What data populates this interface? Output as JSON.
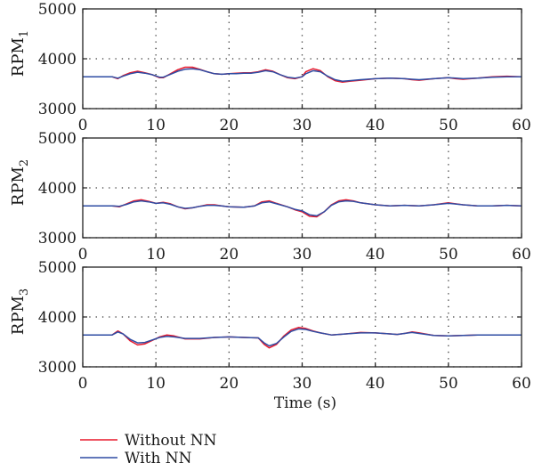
{
  "chart_data": {
    "type": "line",
    "xlabel": "Time (s)",
    "xlim": [
      0,
      60
    ],
    "ylim": [
      3000,
      5000
    ],
    "x_ticks": [
      0,
      10,
      20,
      30,
      40,
      50,
      60
    ],
    "y_ticks": [
      3000,
      4000,
      5000
    ],
    "y_tick_labels": [
      "3000",
      "4000",
      "5000"
    ],
    "grid": "dotted",
    "legend": "bottom-left",
    "colors": {
      "Without NN": "#e8192c",
      "With NN": "#2e4ca3"
    },
    "panels": [
      {
        "ylabel_main": "RPM",
        "ylabel_sub": "1",
        "series": [
          {
            "name": "Without NN",
            "x": [
              0,
              4,
              4.8,
              5.5,
              6.5,
              7.5,
              8.5,
              9.5,
              10.5,
              11,
              12,
              13,
              14,
              15,
              16,
              17,
              18,
              19,
              20,
              21,
              22,
              23,
              24,
              25,
              26,
              27,
              28,
              29,
              30,
              30.5,
              31.5,
              32.5,
              33.5,
              34.5,
              35.5,
              36.5,
              38,
              40,
              42,
              44,
              45,
              46,
              48,
              50,
              51,
              52,
              54,
              56,
              58,
              60
            ],
            "y": [
              3640,
              3640,
              3600,
              3660,
              3720,
              3750,
              3720,
              3680,
              3620,
              3620,
              3700,
              3780,
              3830,
              3830,
              3790,
              3740,
              3700,
              3690,
              3700,
              3710,
              3720,
              3720,
              3740,
              3780,
              3750,
              3680,
              3620,
              3600,
              3640,
              3740,
              3800,
              3760,
              3640,
              3560,
              3530,
              3550,
              3570,
              3600,
              3610,
              3600,
              3580,
              3570,
              3600,
              3620,
              3600,
              3590,
              3610,
              3640,
              3650,
              3640
            ]
          },
          {
            "name": "With NN",
            "x": [
              0,
              4,
              4.8,
              5.5,
              6.5,
              7.5,
              8.5,
              9.5,
              10.5,
              11,
              12,
              13,
              14,
              15,
              16,
              17,
              18,
              19,
              20,
              21,
              22,
              23,
              24,
              25,
              26,
              27,
              28,
              29,
              30,
              30.5,
              31.5,
              32.5,
              33.5,
              34.5,
              35.5,
              36.5,
              38,
              40,
              42,
              44,
              45,
              46,
              48,
              50,
              51,
              52,
              54,
              56,
              58,
              60
            ],
            "y": [
              3640,
              3640,
              3610,
              3650,
              3700,
              3730,
              3710,
              3680,
              3630,
              3630,
              3690,
              3750,
              3790,
              3800,
              3780,
              3740,
              3700,
              3690,
              3700,
              3700,
              3710,
              3710,
              3730,
              3760,
              3740,
              3680,
              3630,
              3610,
              3640,
              3700,
              3760,
              3740,
              3650,
              3580,
              3550,
              3560,
              3580,
              3600,
              3610,
              3600,
              3590,
              3580,
              3600,
              3620,
              3610,
              3600,
              3610,
              3630,
              3640,
              3640
            ]
          }
        ]
      },
      {
        "ylabel_main": "RPM",
        "ylabel_sub": "2",
        "series": [
          {
            "name": "Without NN",
            "x": [
              0,
              4,
              5,
              6,
              7,
              8,
              9,
              10,
              11,
              12,
              13,
              14,
              15,
              16,
              17,
              18,
              19,
              20,
              22,
              23.5,
              24.5,
              25.5,
              26.5,
              28,
              29,
              30,
              31,
              32,
              33,
              34,
              35,
              36,
              37,
              38,
              40,
              42,
              44,
              46,
              48,
              50,
              52,
              54,
              56,
              58,
              60
            ],
            "y": [
              3640,
              3640,
              3620,
              3680,
              3740,
              3760,
              3730,
              3690,
              3710,
              3680,
              3620,
              3580,
              3600,
              3630,
              3660,
              3660,
              3640,
              3620,
              3610,
              3640,
              3720,
              3740,
              3690,
              3620,
              3560,
              3520,
              3430,
              3420,
              3520,
              3660,
              3740,
              3760,
              3740,
              3700,
              3660,
              3640,
              3650,
              3640,
              3660,
              3700,
              3660,
              3640,
              3640,
              3650,
              3640
            ]
          },
          {
            "name": "With NN",
            "x": [
              0,
              4,
              5,
              6,
              7,
              8,
              9,
              10,
              11,
              12,
              13,
              14,
              15,
              16,
              17,
              18,
              19,
              20,
              22,
              23.5,
              24.5,
              25.5,
              26.5,
              28,
              29,
              30,
              31,
              32,
              33,
              34,
              35,
              36,
              37,
              38,
              40,
              42,
              44,
              46,
              48,
              50,
              52,
              54,
              56,
              58,
              60
            ],
            "y": [
              3640,
              3640,
              3630,
              3670,
              3720,
              3740,
              3720,
              3690,
              3700,
              3670,
              3620,
              3590,
              3600,
              3630,
              3650,
              3650,
              3640,
              3620,
              3610,
              3640,
              3700,
              3720,
              3680,
              3620,
              3570,
              3540,
              3460,
              3440,
              3520,
              3650,
              3720,
              3740,
              3730,
              3700,
              3660,
              3640,
              3650,
              3640,
              3660,
              3690,
              3660,
              3640,
              3640,
              3650,
              3640
            ]
          }
        ]
      },
      {
        "ylabel_main": "RPM",
        "ylabel_sub": "3",
        "series": [
          {
            "name": "Without NN",
            "x": [
              0,
              4,
              4.8,
              5.5,
              6.5,
              7.5,
              8.5,
              9.5,
              10.5,
              11.5,
              12.5,
              14,
              16,
              18,
              20,
              22,
              24,
              24.8,
              25.5,
              26.5,
              27.5,
              28.5,
              29.5,
              30.5,
              31.5,
              32.5,
              34,
              36,
              38,
              40,
              42,
              43,
              44,
              45,
              46,
              48,
              50,
              52,
              54,
              56,
              58,
              60
            ],
            "y": [
              3640,
              3640,
              3720,
              3660,
              3520,
              3440,
              3460,
              3530,
              3600,
              3640,
              3620,
              3560,
              3560,
              3590,
              3600,
              3590,
              3580,
              3450,
              3380,
              3450,
              3620,
              3740,
              3790,
              3770,
              3720,
              3680,
              3640,
              3660,
              3690,
              3680,
              3660,
              3650,
              3670,
              3700,
              3680,
              3630,
              3620,
              3630,
              3640,
              3640,
              3640,
              3640
            ]
          },
          {
            "name": "With NN",
            "x": [
              0,
              4,
              4.8,
              5.5,
              6.5,
              7.5,
              8.5,
              9.5,
              10.5,
              11.5,
              12.5,
              14,
              16,
              18,
              20,
              22,
              24,
              24.8,
              25.5,
              26.5,
              27.5,
              28.5,
              29.5,
              30.5,
              31.5,
              32.5,
              34,
              36,
              38,
              40,
              42,
              43,
              44,
              45,
              46,
              48,
              50,
              52,
              54,
              56,
              58,
              60
            ],
            "y": [
              3640,
              3640,
              3700,
              3660,
              3550,
              3480,
              3490,
              3540,
              3590,
              3610,
              3600,
              3570,
              3570,
              3590,
              3600,
              3590,
              3580,
              3480,
              3420,
              3470,
              3600,
              3710,
              3760,
              3750,
              3710,
              3680,
              3640,
              3660,
              3680,
              3680,
              3660,
              3650,
              3670,
              3690,
              3670,
              3630,
              3620,
              3630,
              3640,
              3640,
              3640,
              3640
            ]
          }
        ]
      }
    ]
  }
}
